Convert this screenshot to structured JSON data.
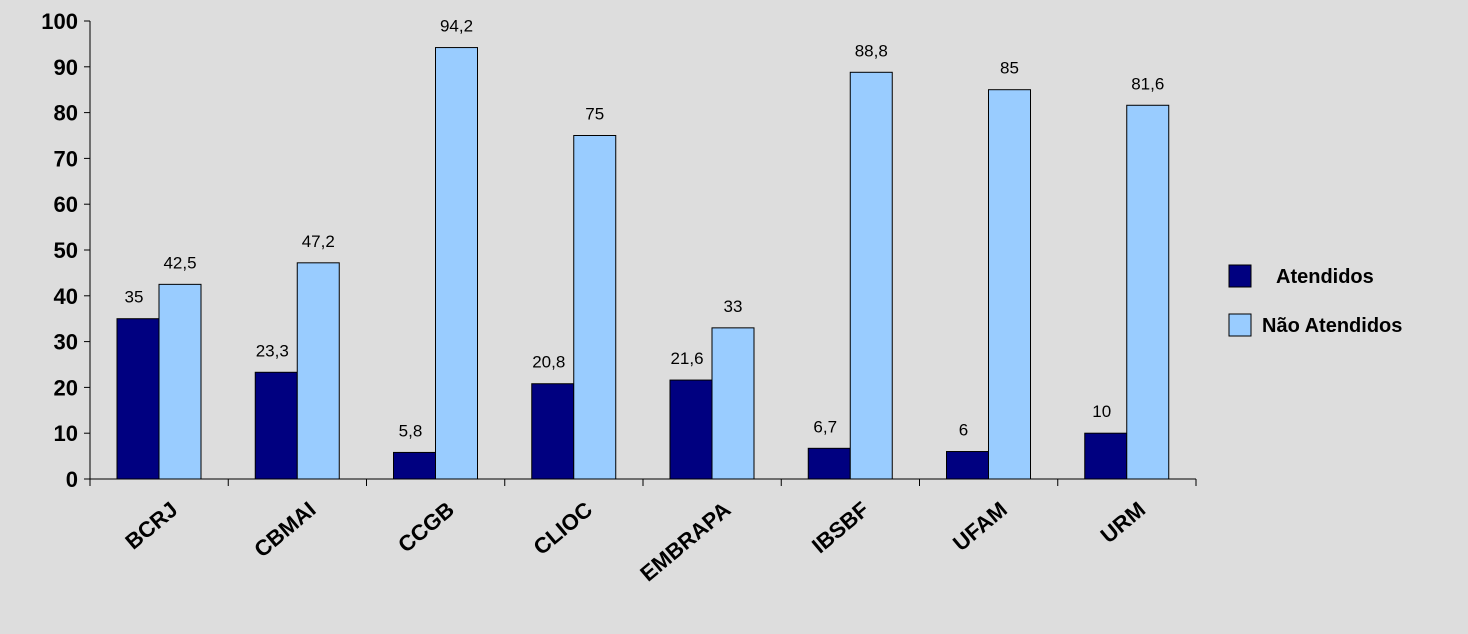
{
  "chart_data": {
    "type": "bar",
    "categories": [
      "BCRJ",
      "CBMAI",
      "CCGB",
      "CLIOC",
      "EMBRAPA",
      "IBSBF",
      "UFAM",
      "URM"
    ],
    "series": [
      {
        "name": "Atendidos",
        "color": "#000080",
        "values": [
          35,
          23.3,
          5.8,
          20.8,
          21.6,
          6.7,
          6,
          10
        ],
        "labels": [
          "35",
          "23,3",
          "5,8",
          "20,8",
          "21,6",
          "6,7",
          "6",
          "10"
        ]
      },
      {
        "name": "Não Atendidos",
        "color": "#99ccff",
        "values": [
          42.5,
          47.2,
          94.2,
          75,
          33,
          88.8,
          85,
          81.6
        ],
        "labels": [
          "42,5",
          "47,2",
          "94,2",
          "75",
          "33",
          "88,8",
          "85",
          "81,6"
        ]
      }
    ],
    "ylim": [
      0,
      100
    ],
    "yticks": [
      0,
      10,
      20,
      30,
      40,
      50,
      60,
      70,
      80,
      90,
      100
    ],
    "title": "",
    "xlabel": "",
    "ylabel": "",
    "grid": false,
    "legend": "right",
    "background": "#dddddd"
  }
}
